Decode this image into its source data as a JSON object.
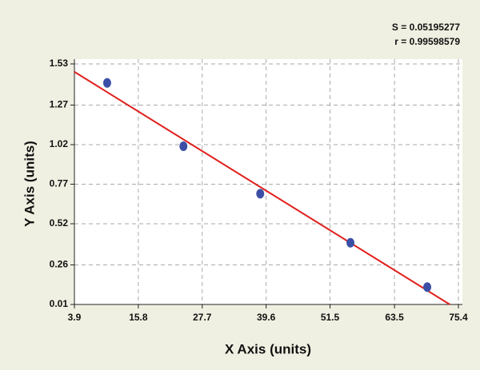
{
  "chart_data": {
    "type": "scatter",
    "x_label": "X Axis (units)",
    "y_label": "Y Axis (units)",
    "annotations": [
      "S = 0.05195277",
      "r = 0.99598579"
    ],
    "series": [
      {
        "color": "#3b4fa6",
        "x": [
          10.0,
          24.2,
          38.5,
          55.3,
          69.6
        ],
        "values": [
          1.41,
          1.01,
          0.71,
          0.4,
          0.12
        ]
      }
    ],
    "fit_line": {
      "color": "#e0201c",
      "x": [
        3.9,
        73.8
      ],
      "y": [
        1.48,
        0.01
      ]
    },
    "xlim": [
      3.9,
      75.4
    ],
    "xticks": [
      3.9,
      15.8,
      27.7,
      39.6,
      51.5,
      63.5,
      75.4
    ],
    "ylim": [
      0.01,
      1.53
    ],
    "yticks": [
      0.01,
      0.26,
      0.52,
      0.77,
      1.02,
      1.27,
      1.53
    ],
    "grid": true
  }
}
